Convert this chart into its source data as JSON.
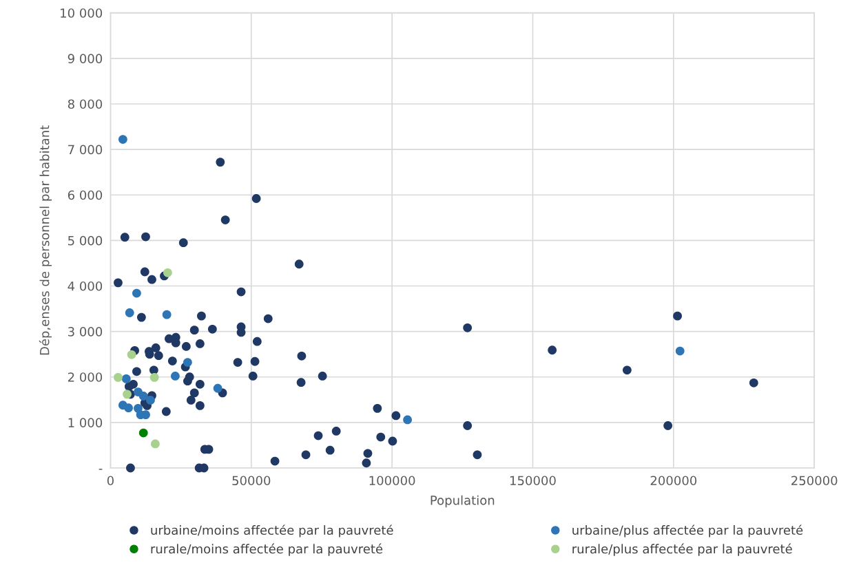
{
  "chart_data": {
    "type": "scatter",
    "xlabel": "Population",
    "ylabel": "Dép,enses de personnel par habitant",
    "xlim": [
      0,
      250000
    ],
    "xticks": [
      0,
      50000,
      100000,
      150000,
      200000,
      250000
    ],
    "ylim": [
      0,
      10000
    ],
    "yticks": [
      {
        "value": 0,
        "label": "-"
      },
      {
        "value": 1000,
        "label": "1 000"
      },
      {
        "value": 2000,
        "label": "2 000"
      },
      {
        "value": 3000,
        "label": "3 000"
      },
      {
        "value": 4000,
        "label": "4 000"
      },
      {
        "value": 5000,
        "label": "5 000"
      },
      {
        "value": 6000,
        "label": "6 000"
      },
      {
        "value": 7000,
        "label": "7 000"
      },
      {
        "value": 8000,
        "label": "8 000"
      },
      {
        "value": 9000,
        "label": "9 000"
      },
      {
        "value": 10000,
        "label": "10 000"
      }
    ],
    "grid": true,
    "legend": "bottom",
    "marker": "circle",
    "series": [
      {
        "name": "urbaine/moins affectée par la pauvreté",
        "color": "#1f3864",
        "x": [
          2700,
          5100,
          12500,
          25900,
          39000,
          51800,
          40800,
          12200,
          19100,
          14700,
          67000,
          46400,
          11000,
          32300,
          56000,
          126800,
          201400,
          156900,
          183500,
          228500,
          198000,
          29800,
          36200,
          46400,
          46400,
          52100,
          20800,
          23200,
          23200,
          26900,
          31800,
          8600,
          13700,
          16100,
          13900,
          17100,
          22000,
          45200,
          51300,
          26600,
          9300,
          15400,
          50600,
          28100,
          27400,
          31800,
          8100,
          6600,
          7100,
          14700,
          39800,
          29800,
          28600,
          31800,
          13000,
          12200,
          19800,
          67900,
          67700,
          75300,
          94800,
          101400,
          126800,
          73800,
          80200,
          96000,
          100200,
          69400,
          78000,
          91400,
          90900,
          130300,
          58400,
          33500,
          34900,
          7100,
          31500,
          33200
        ],
        "values": [
          4070,
          5070,
          5080,
          4950,
          6720,
          5920,
          5450,
          4310,
          4220,
          4140,
          4480,
          3870,
          3310,
          3340,
          3280,
          3080,
          3340,
          2590,
          2150,
          1870,
          930,
          3030,
          3050,
          3100,
          2980,
          2780,
          2840,
          2870,
          2750,
          2670,
          2730,
          2580,
          2560,
          2640,
          2500,
          2470,
          2350,
          2320,
          2340,
          2220,
          2120,
          2150,
          2020,
          2000,
          1910,
          1840,
          1840,
          1790,
          1620,
          1590,
          1650,
          1650,
          1490,
          1370,
          1370,
          1430,
          1240,
          2460,
          1880,
          2020,
          1310,
          1150,
          930,
          710,
          810,
          680,
          590,
          290,
          390,
          320,
          110,
          290,
          150,
          410,
          410,
          0,
          0,
          0
        ]
      },
      {
        "name": "urbaine/plus affectée par la pauvreté",
        "color": "#2e75b6",
        "x": [
          4400,
          9300,
          6800,
          20000,
          27400,
          5600,
          23000,
          9800,
          11700,
          14200,
          38100,
          4400,
          6400,
          9800,
          10700,
          12500,
          105500,
          202300
        ],
        "values": [
          7220,
          3840,
          3410,
          3370,
          2320,
          1960,
          2020,
          1670,
          1580,
          1490,
          1750,
          1380,
          1320,
          1310,
          1170,
          1170,
          1060,
          2570
        ]
      },
      {
        "name": "rurale/moins affectée par la pauvreté",
        "color": "#008000",
        "x": [
          11700
        ],
        "values": [
          770
        ]
      },
      {
        "name": "rurale/plus affectée par la pauvreté",
        "color": "#a9d18e",
        "x": [
          20300,
          7500,
          2700,
          15600,
          5900,
          15900
        ],
        "values": [
          4290,
          2490,
          1990,
          1990,
          1620,
          530
        ]
      }
    ]
  }
}
